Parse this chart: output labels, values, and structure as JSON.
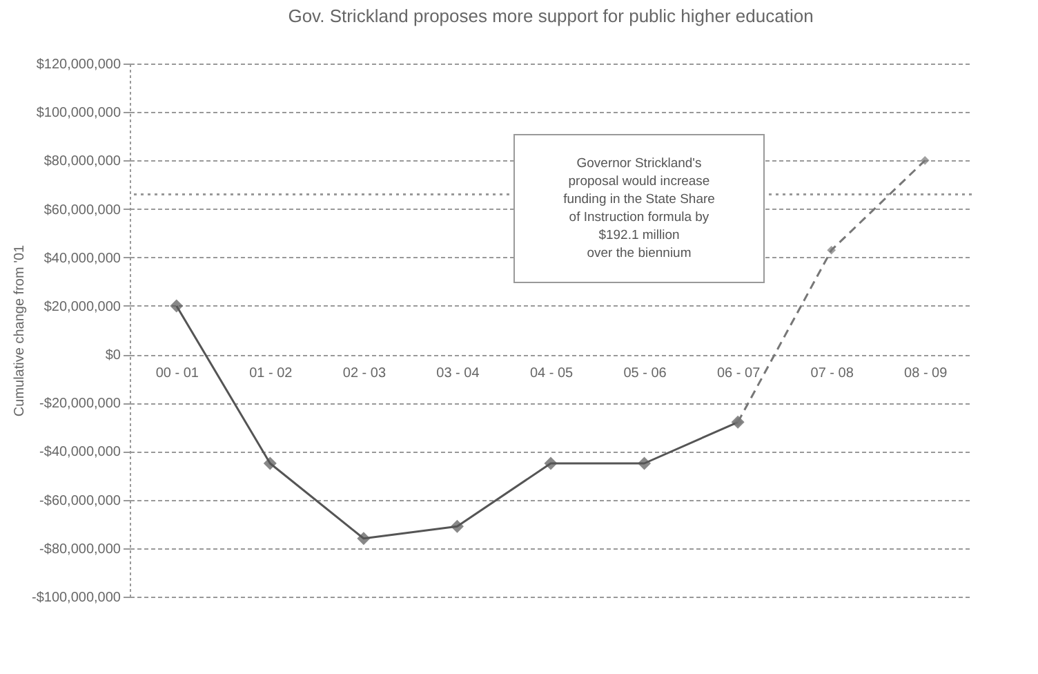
{
  "chart_data": {
    "type": "line",
    "title": "Gov. Strickland proposes more support for public higher education",
    "ylabel": "Cumulative change from '01",
    "categories": [
      "00 - 01",
      "01 - 02",
      "02 - 03",
      "03 - 04",
      "04 - 05",
      "05 - 06",
      "06 - 07",
      "07 - 08",
      "08 - 09"
    ],
    "series": [
      {
        "color": "#555555",
        "line_style": "solid",
        "values": [
          20000000,
          -45000000,
          -76000000,
          -71000000,
          -45000000,
          -45000000,
          -28000000,
          null,
          null
        ]
      },
      {
        "color": "#777777",
        "line_style": "dashed",
        "values": [
          null,
          null,
          null,
          null,
          null,
          null,
          -28000000,
          43000000,
          80000000
        ]
      }
    ],
    "ylim": [
      -100000000,
      120000000
    ],
    "yticks": [
      {
        "value": 120000000,
        "label": "$120,000,000"
      },
      {
        "value": 100000000,
        "label": "$100,000,000"
      },
      {
        "value": 80000000,
        "label": "$80,000,000"
      },
      {
        "value": 60000000,
        "label": "$60,000,000"
      },
      {
        "value": 40000000,
        "label": "$40,000,000"
      },
      {
        "value": 20000000,
        "label": "$20,000,000"
      },
      {
        "value": 0,
        "label": "$0"
      },
      {
        "value": -20000000,
        "label": "-$20,000,000"
      },
      {
        "value": -40000000,
        "label": "-$40,000,000"
      },
      {
        "value": -60000000,
        "label": "-$60,000,000"
      },
      {
        "value": -80000000,
        "label": "-$80,000,000"
      },
      {
        "value": -100000000,
        "label": "-$100,000,000"
      }
    ],
    "ref_lines": [
      {
        "axis": "y",
        "value": 66000000,
        "line_style": "dotted",
        "color": "#999999"
      }
    ],
    "annotations": [
      "Governor Strickland's\nproposal would increase\nfunding in the State Share\nof Instruction formula by\n$192.1 million\nover the biennium"
    ],
    "grid": "y",
    "marker": "diamond"
  }
}
